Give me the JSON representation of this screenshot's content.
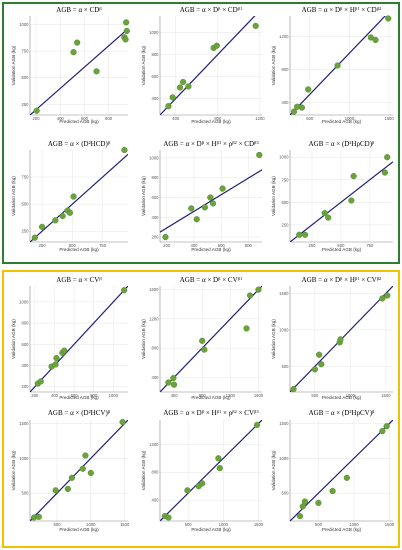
{
  "colors": {
    "top_frame": "#2e7d32",
    "bottom_frame": "#f2c200",
    "point": "#6aa33c",
    "point_stroke": "#4e7f28",
    "fit_line": "#1f1f7a"
  },
  "chart_data": [
    {
      "type": "scatter",
      "title": "AGB = α × CD^β",
      "xlabel": "Predicted AGB (kg)",
      "ylabel": "Validation AGB (kg)",
      "xlim": [
        150,
        960
      ],
      "ylim": [
        150,
        1080
      ],
      "xticks": [
        200,
        400,
        600,
        800
      ],
      "yticks": [
        250,
        500,
        750,
        1000
      ],
      "fit": [
        [
          150,
          150
        ],
        [
          960,
          960
        ]
      ],
      "points": [
        [
          205,
          190
        ],
        [
          510,
          740
        ],
        [
          540,
          830
        ],
        [
          700,
          560
        ],
        [
          930,
          880
        ],
        [
          945,
          1020
        ],
        [
          950,
          940
        ],
        [
          940,
          860
        ]
      ]
    },
    {
      "type": "scatter",
      "title": "AGB = α × D^β × CD^β1",
      "xlabel": "Predicted AGB (kg)",
      "ylabel": "Validation AGB (kg)",
      "xlim": [
        250,
        1220
      ],
      "ylim": [
        250,
        1150
      ],
      "xticks": [
        400,
        800,
        1200
      ],
      "yticks": [
        400,
        600,
        800,
        1000
      ],
      "fit": [
        [
          250,
          250
        ],
        [
          1220,
          1220
        ]
      ],
      "points": [
        [
          330,
          330
        ],
        [
          370,
          410
        ],
        [
          440,
          500
        ],
        [
          470,
          550
        ],
        [
          520,
          510
        ],
        [
          760,
          860
        ],
        [
          790,
          880
        ],
        [
          1160,
          1060
        ]
      ]
    },
    {
      "type": "scatter",
      "title": "AGB = α × D^β × H^β1 × CD^β2",
      "xlabel": "Predicted AGB (kg)",
      "ylabel": "Validation AGB (kg)",
      "xlim": [
        250,
        1550
      ],
      "ylim": [
        250,
        1450
      ],
      "xticks": [
        500,
        1000,
        1500
      ],
      "yticks": [
        400,
        800,
        1200
      ],
      "fit": [
        [
          250,
          250
        ],
        [
          1550,
          1550
        ]
      ],
      "points": [
        [
          300,
          290
        ],
        [
          340,
          350
        ],
        [
          400,
          340
        ],
        [
          480,
          560
        ],
        [
          850,
          850
        ],
        [
          1270,
          1190
        ],
        [
          1330,
          1160
        ],
        [
          1490,
          1420
        ]
      ]
    },
    {
      "type": "scatter",
      "title": "AGB = α × (D²HCD)^β",
      "xlabel": "Predicted AGB (kg)",
      "ylabel": "Validation AGB (kg)",
      "xlim": [
        150,
        960
      ],
      "ylim": [
        150,
        1000
      ],
      "xticks": [
        250,
        500,
        750
      ],
      "yticks": [
        250,
        500,
        750
      ],
      "fit": [
        [
          150,
          150
        ],
        [
          960,
          960
        ]
      ],
      "points": [
        [
          190,
          190
        ],
        [
          250,
          290
        ],
        [
          360,
          350
        ],
        [
          420,
          390
        ],
        [
          460,
          440
        ],
        [
          480,
          420
        ],
        [
          510,
          570
        ],
        [
          930,
          1000
        ]
      ]
    },
    {
      "type": "scatter",
      "title": "AGB = α × D^β × H^β1 × ρ^β2 × CD^β3",
      "xlabel": "Predicted AGB (kg)",
      "ylabel": "Validation AGB (kg)",
      "xlim": [
        150,
        900
      ],
      "ylim": [
        150,
        1080
      ],
      "xticks": [
        200,
        400,
        600,
        800
      ],
      "yticks": [
        200,
        400,
        600,
        800,
        1000
      ],
      "fit": [
        [
          150,
          250
        ],
        [
          900,
          880
        ]
      ],
      "points": [
        [
          190,
          200
        ],
        [
          380,
          490
        ],
        [
          420,
          380
        ],
        [
          480,
          500
        ],
        [
          520,
          600
        ],
        [
          540,
          540
        ],
        [
          610,
          690
        ],
        [
          880,
          1030
        ]
      ]
    },
    {
      "type": "scatter",
      "title": "AGB = α × (D²HρCD)^β",
      "xlabel": "Predicted AGB (kg)",
      "ylabel": "Validation AGB (kg)",
      "xlim": [
        60,
        950
      ],
      "ylim": [
        60,
        1080
      ],
      "xticks": [
        250,
        500,
        750
      ],
      "yticks": [
        250,
        500,
        750,
        1000
      ],
      "fit": [
        [
          60,
          60
        ],
        [
          950,
          950
        ]
      ],
      "points": [
        [
          140,
          140
        ],
        [
          190,
          140
        ],
        [
          360,
          380
        ],
        [
          390,
          330
        ],
        [
          590,
          520
        ],
        [
          610,
          790
        ],
        [
          880,
          830
        ],
        [
          900,
          1000
        ]
      ]
    },
    {
      "type": "scatter",
      "title": "AGB = α × CV^β",
      "xlabel": "Predicted AGB (kg)",
      "ylabel": "Validation AGB (kg)",
      "xlim": [
        150,
        1150
      ],
      "ylim": [
        150,
        1150
      ],
      "xticks": [
        200,
        400,
        600,
        800,
        1000
      ],
      "yticks": [
        200,
        400,
        600,
        800,
        1000
      ],
      "fit": [
        [
          150,
          150
        ],
        [
          1150,
          1150
        ]
      ],
      "points": [
        [
          230,
          230
        ],
        [
          260,
          250
        ],
        [
          370,
          390
        ],
        [
          410,
          410
        ],
        [
          420,
          470
        ],
        [
          480,
          520
        ],
        [
          500,
          540
        ],
        [
          1110,
          1110
        ]
      ]
    },
    {
      "type": "scatter",
      "title": "AGB = α × D^β × CV^β1",
      "xlabel": "Predicted AGB (kg)",
      "ylabel": "Validation AGB (kg)",
      "xlim": [
        200,
        1650
      ],
      "ylim": [
        200,
        1650
      ],
      "xticks": [
        400,
        800,
        1200,
        1600
      ],
      "yticks": [
        400,
        800,
        1200,
        1600
      ],
      "fit": [
        [
          200,
          200
        ],
        [
          1650,
          1650
        ]
      ],
      "points": [
        [
          320,
          330
        ],
        [
          390,
          390
        ],
        [
          400,
          300
        ],
        [
          800,
          900
        ],
        [
          830,
          780
        ],
        [
          1430,
          1070
        ],
        [
          1480,
          1520
        ],
        [
          1600,
          1600
        ]
      ]
    },
    {
      "type": "scatter",
      "title": "AGB = α × D^β × H^β1 × CV^β2",
      "xlabel": "Predicted AGB (kg)",
      "ylabel": "Validation AGB (kg)",
      "xlim": [
        150,
        1600
      ],
      "ylim": [
        150,
        1600
      ],
      "xticks": [
        500,
        1000,
        1500
      ],
      "yticks": [
        500,
        1000,
        1500
      ],
      "fit": [
        [
          150,
          150
        ],
        [
          1600,
          1600
        ]
      ],
      "points": [
        [
          200,
          190
        ],
        [
          500,
          460
        ],
        [
          560,
          660
        ],
        [
          590,
          530
        ],
        [
          850,
          830
        ],
        [
          860,
          870
        ],
        [
          1450,
          1430
        ],
        [
          1520,
          1470
        ]
      ]
    },
    {
      "type": "scatter",
      "title": "AGB = α × (D²HCV)^β",
      "xlabel": "Predicted AGB (kg)",
      "ylabel": "Validation AGB (kg)",
      "xlim": [
        100,
        1550
      ],
      "ylim": [
        100,
        1550
      ],
      "xticks": [
        500,
        1000,
        1500
      ],
      "yticks": [
        500,
        1000,
        1500
      ],
      "fit": [
        [
          100,
          100
        ],
        [
          1550,
          1550
        ]
      ],
      "points": [
        [
          160,
          150
        ],
        [
          230,
          160
        ],
        [
          480,
          540
        ],
        [
          660,
          560
        ],
        [
          720,
          720
        ],
        [
          880,
          850
        ],
        [
          920,
          1040
        ],
        [
          1000,
          790
        ],
        [
          1470,
          1520
        ]
      ]
    },
    {
      "type": "scatter",
      "title": "AGB = α × D^β × H^β1 × ρ^β2 × CV^β3",
      "xlabel": "Predicted AGB (kg)",
      "ylabel": "Validation AGB (kg)",
      "xlim": [
        100,
        1550
      ],
      "ylim": [
        100,
        1550
      ],
      "xticks": [
        500,
        1000,
        1500
      ],
      "yticks": [
        400,
        800,
        1200
      ],
      "fit": [
        [
          100,
          100
        ],
        [
          1550,
          1550
        ]
      ],
      "points": [
        [
          170,
          170
        ],
        [
          220,
          150
        ],
        [
          490,
          540
        ],
        [
          650,
          600
        ],
        [
          700,
          640
        ],
        [
          930,
          1000
        ],
        [
          950,
          860
        ],
        [
          1480,
          1480
        ]
      ]
    },
    {
      "type": "scatter",
      "title": "AGB = α × (D²HρCV)^β",
      "xlabel": "Predicted AGB (kg)",
      "ylabel": "Validation AGB (kg)",
      "xlim": [
        100,
        1550
      ],
      "ylim": [
        100,
        1550
      ],
      "xticks": [
        500,
        1000,
        1500
      ],
      "yticks": [
        500,
        1000,
        1500
      ],
      "fit": [
        [
          100,
          100
        ],
        [
          1550,
          1550
        ]
      ],
      "points": [
        [
          240,
          170
        ],
        [
          280,
          310
        ],
        [
          310,
          380
        ],
        [
          500,
          360
        ],
        [
          700,
          530
        ],
        [
          900,
          720
        ],
        [
          1400,
          1390
        ],
        [
          1460,
          1460
        ]
      ]
    }
  ]
}
